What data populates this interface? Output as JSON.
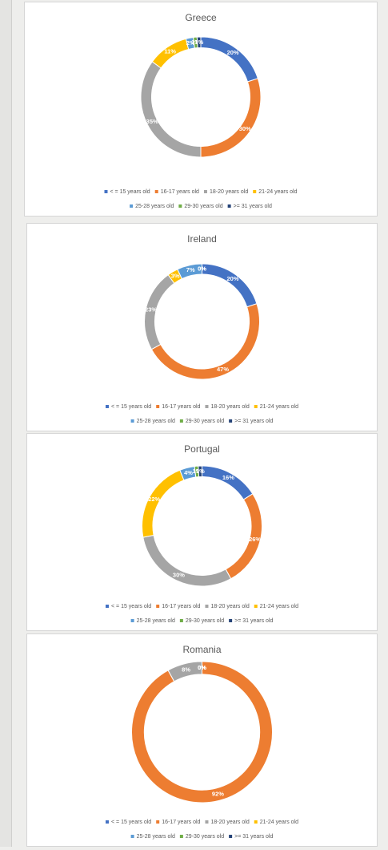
{
  "chart_data": [
    {
      "type": "donut",
      "title": "Greece",
      "categories": [
        "< = 15 years old",
        "16-17 years old",
        "18-20 years old",
        "21-24 years old",
        "25-28 years old",
        "29-30 years old",
        ">= 31 years old"
      ],
      "values": [
        20,
        30,
        35,
        11,
        2,
        1,
        1
      ],
      "value_labels": [
        "20%",
        "30%",
        "35%",
        "11%",
        "2%",
        "1%",
        "1%"
      ],
      "colors": [
        "#4472c4",
        "#ed7d31",
        "#a5a5a5",
        "#ffc000",
        "#5b9bd5",
        "#70ad47",
        "#264478"
      ],
      "legend": "bottom"
    },
    {
      "type": "donut",
      "title": "Ireland",
      "categories": [
        "< = 15 years old",
        "16-17 years old",
        "18-20 years old",
        "21-24 years old",
        "25-28 years old",
        "29-30 years old",
        ">= 31 years old"
      ],
      "values": [
        20,
        47,
        23,
        3,
        7,
        0,
        0
      ],
      "value_labels": [
        "20%",
        "47%",
        "23%",
        "3%",
        "7%",
        "0%",
        "0%"
      ],
      "colors": [
        "#4472c4",
        "#ed7d31",
        "#a5a5a5",
        "#ffc000",
        "#5b9bd5",
        "#70ad47",
        "#264478"
      ],
      "legend": "bottom"
    },
    {
      "type": "donut",
      "title": "Portugal",
      "categories": [
        "< = 15 years old",
        "16-17 years old",
        "18-20 years old",
        "21-24 years old",
        "25-28 years old",
        "29-30 years old",
        ">= 31 years old"
      ],
      "values": [
        16,
        26,
        30,
        22,
        4,
        1,
        1
      ],
      "value_labels": [
        "16%",
        "26%",
        "30%",
        "22%",
        "4%",
        "1%",
        "1%"
      ],
      "colors": [
        "#4472c4",
        "#ed7d31",
        "#a5a5a5",
        "#ffc000",
        "#5b9bd5",
        "#70ad47",
        "#264478"
      ],
      "legend": "bottom"
    },
    {
      "type": "donut",
      "title": "Romania",
      "categories": [
        "< = 15 years old",
        "16-17 years old",
        "18-20 years old",
        "21-24 years old",
        "25-28 years old",
        "29-30 years old",
        ">= 31 years old"
      ],
      "values": [
        0,
        92,
        8,
        0,
        0,
        0,
        0
      ],
      "value_labels": [
        "0%",
        "92%",
        "8%",
        "0%",
        "0%",
        "0%",
        "0%"
      ],
      "colors": [
        "#4472c4",
        "#ed7d31",
        "#a5a5a5",
        "#ffc000",
        "#5b9bd5",
        "#70ad47",
        "#264478"
      ],
      "legend": "bottom"
    }
  ]
}
